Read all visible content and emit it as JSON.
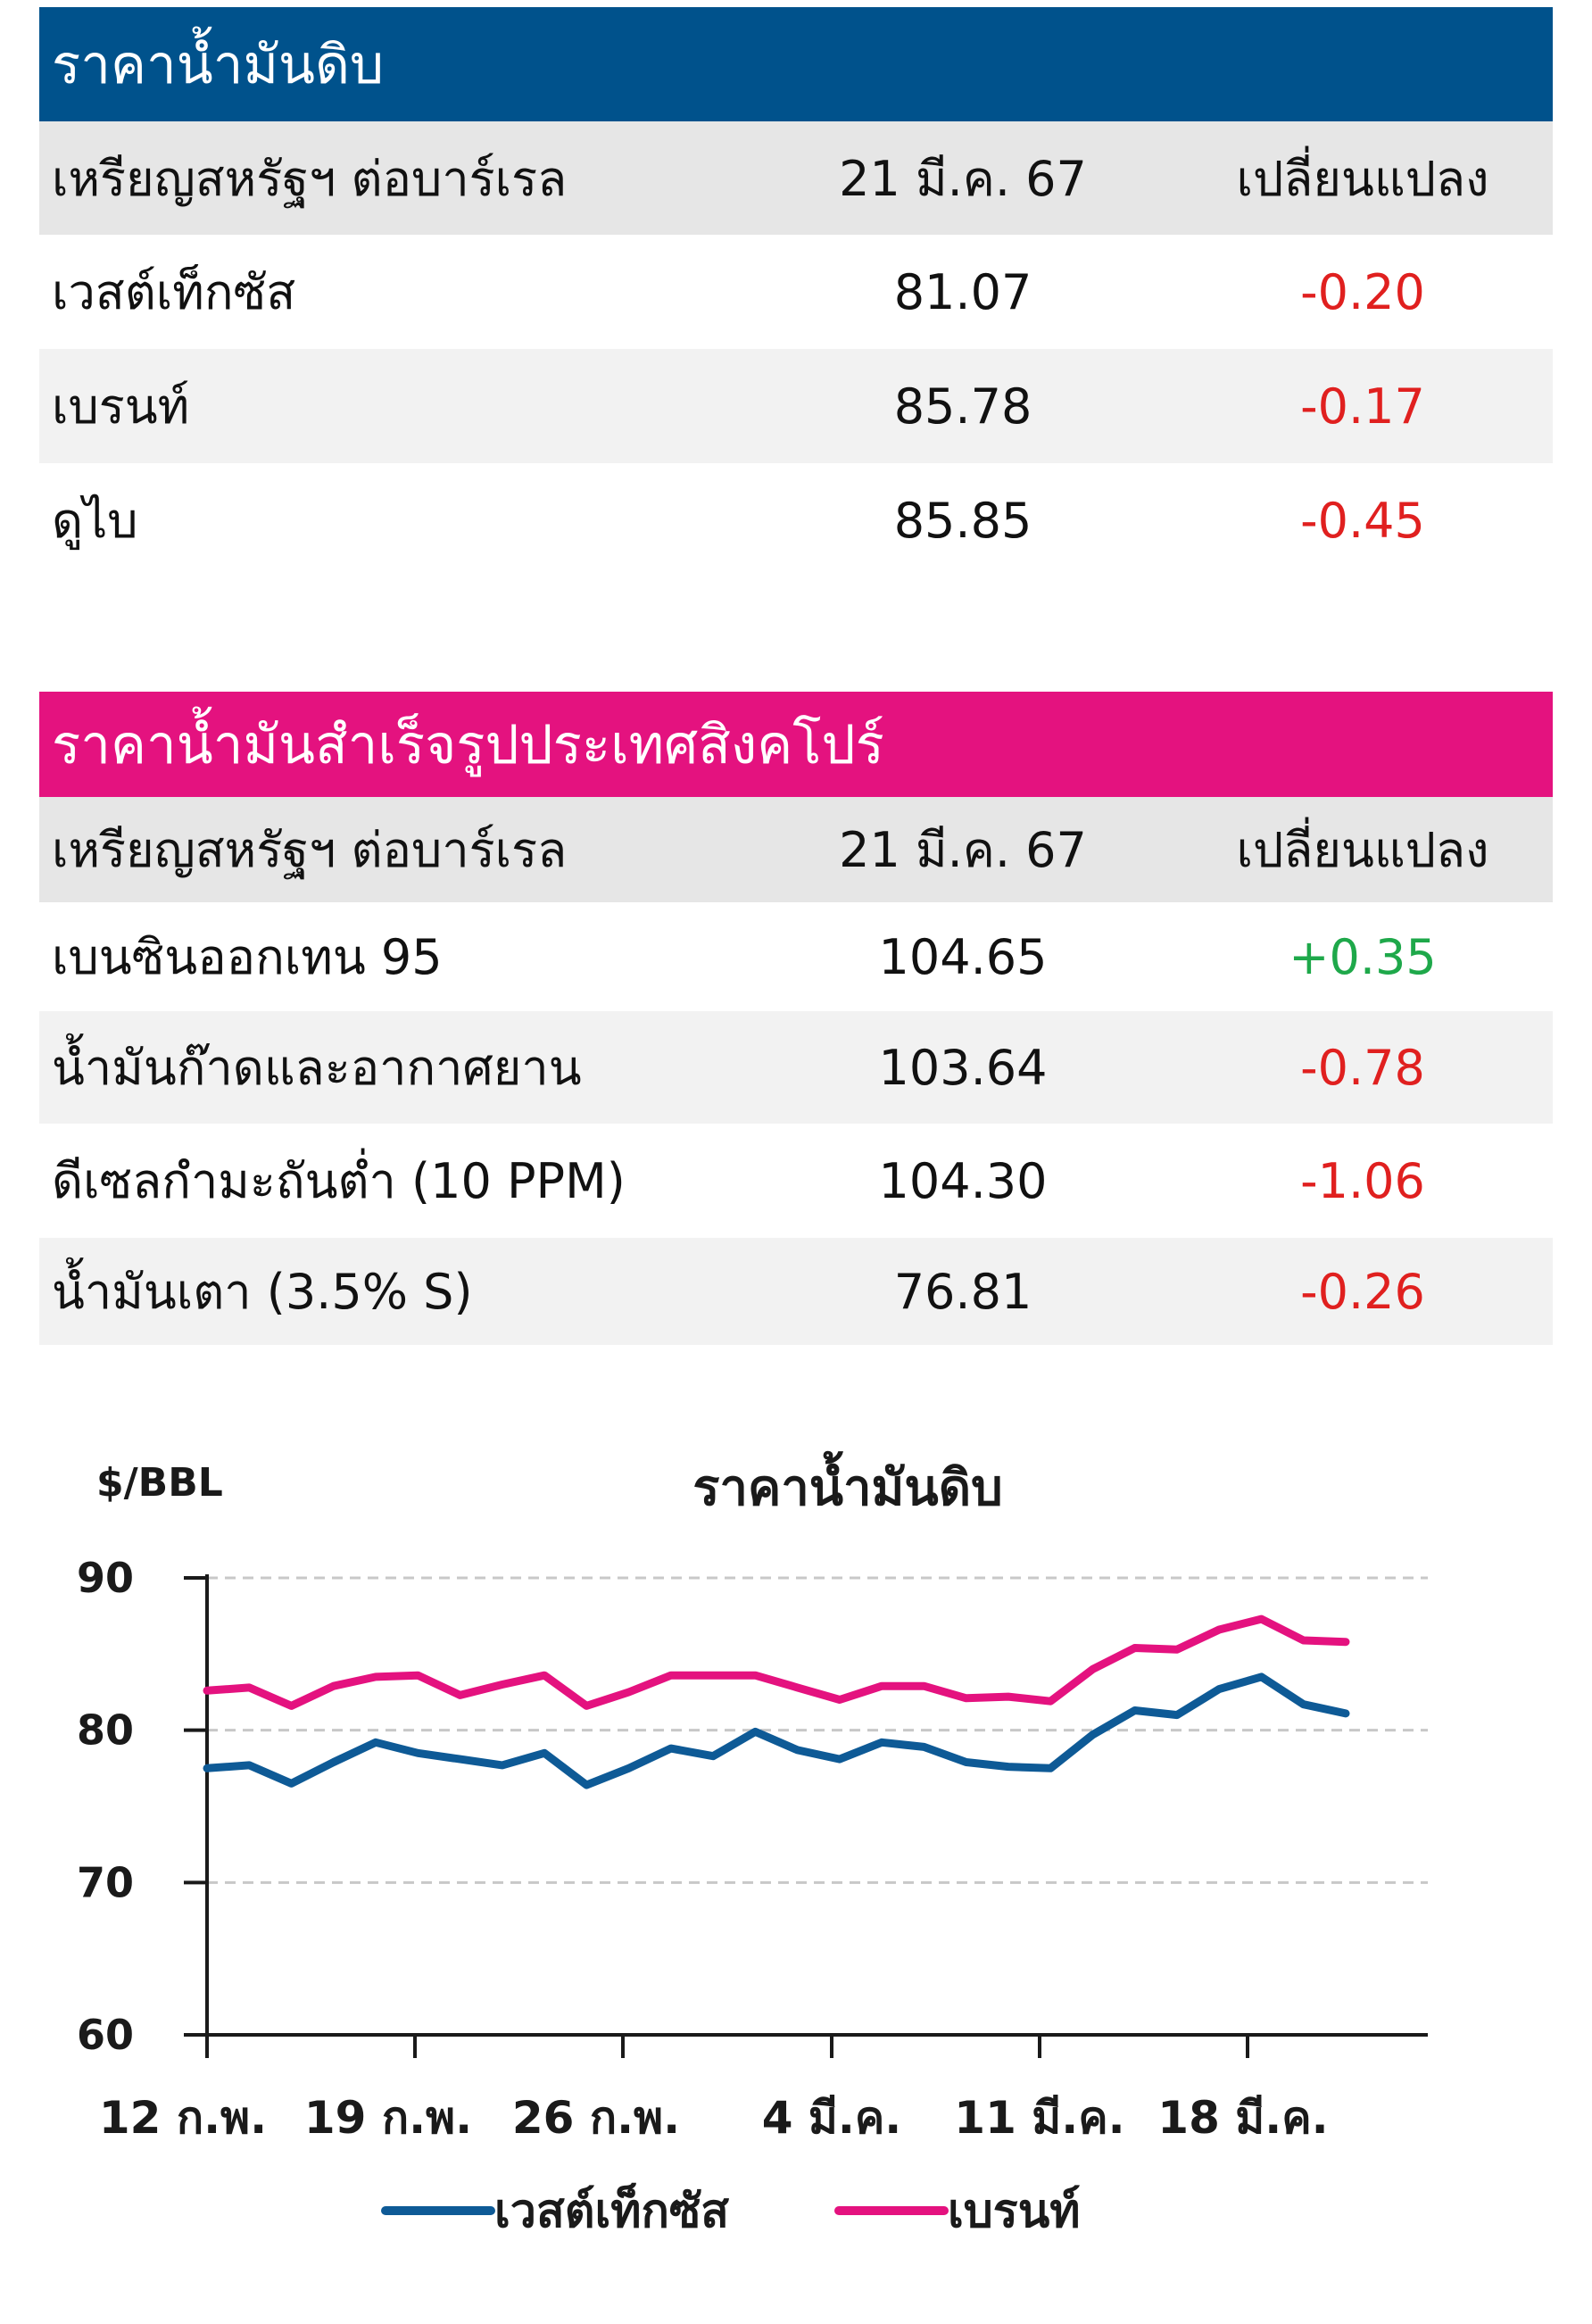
{
  "crude": {
    "title": "ราคาน้ำมันดิบ",
    "headers": [
      "เหรียญสหรัฐฯ ต่อบาร์เรล",
      "21 มี.ค. 67",
      "เปลี่ยนแปลง"
    ],
    "rows": [
      {
        "name": "เวสต์เท็กซัส",
        "price": "81.07",
        "change": "-0.20"
      },
      {
        "name": "เบรนท์",
        "price": "85.78",
        "change": "-0.17"
      },
      {
        "name": "ดูไบ",
        "price": "85.85",
        "change": "-0.45"
      }
    ]
  },
  "refined": {
    "title": "ราคาน้ำมันสำเร็จรูปประเทศสิงคโปร์",
    "headers": [
      "เหรียญสหรัฐฯ ต่อบาร์เรล",
      "21 มี.ค. 67",
      "เปลี่ยนแปลง"
    ],
    "rows": [
      {
        "name": "เบนซินออกเทน 95",
        "price": "104.65",
        "change": "+0.35"
      },
      {
        "name": "น้ำมันก๊าดและอากาศยาน",
        "price": "103.64",
        "change": "-0.78"
      },
      {
        "name": "ดีเซลกำมะถันต่ำ (10 PPM)",
        "price": "104.30",
        "change": "-1.06"
      },
      {
        "name": "น้ำมันเตา (3.5% S)",
        "price": "76.81",
        "change": "-0.26"
      }
    ]
  },
  "colors": {
    "blue": "#00528c",
    "pink": "#e4127f",
    "negative": "#e0201f",
    "positive": "#1ea84a"
  },
  "chart_data": {
    "type": "line",
    "title": "ราคาน้ำมันดิบ",
    "ylabel": "$/BBL",
    "ylim": [
      60,
      90
    ],
    "yticks": [
      "90",
      "80",
      "70",
      "60"
    ],
    "xtick_labels": [
      "12 ก.พ.",
      "19 ก.พ.",
      "26 ก.พ.",
      "4 มี.ค.",
      "11 มี.ค.",
      "18 มี.ค."
    ],
    "x": [
      "12 ก.พ.",
      "13 ก.พ.",
      "14 ก.พ.",
      "15 ก.พ.",
      "16 ก.พ.",
      "20 ก.พ.",
      "21 ก.พ.",
      "22 ก.พ.",
      "23 ก.พ.",
      "26 ก.พ.",
      "27 ก.พ.",
      "28 ก.พ.",
      "29 ก.พ.",
      "1 มี.ค.",
      "4 มี.ค.",
      "5 มี.ค.",
      "6 มี.ค.",
      "7 มี.ค.",
      "8 มี.ค.",
      "11 มี.ค.",
      "12 มี.ค.",
      "13 มี.ค.",
      "14 มี.ค.",
      "15 มี.ค.",
      "18 มี.ค.",
      "19 มี.ค.",
      "20 มี.ค.",
      "21 มี.ค."
    ],
    "grid": true,
    "legend": "bottom",
    "series": [
      {
        "name": "เวสต์เท็กซัส",
        "color": "#0e5a96",
        "values": [
          77.5,
          77.7,
          76.5,
          77.9,
          79.2,
          78.5,
          78.1,
          77.7,
          78.5,
          76.4,
          77.5,
          78.8,
          78.3,
          79.9,
          78.7,
          78.1,
          79.2,
          78.9,
          77.9,
          77.6,
          77.5,
          79.7,
          81.3,
          81.0,
          82.7,
          83.5,
          81.7,
          81.1
        ]
      },
      {
        "name": "เบรนท์",
        "color": "#e4127f",
        "values": [
          82.6,
          82.8,
          81.6,
          82.9,
          83.5,
          83.6,
          82.3,
          83.0,
          83.6,
          81.6,
          82.5,
          83.6,
          83.6,
          83.6,
          82.8,
          82.0,
          82.9,
          82.9,
          82.1,
          82.2,
          81.9,
          84.0,
          85.4,
          85.3,
          86.6,
          87.3,
          85.9,
          85.8
        ]
      }
    ]
  }
}
